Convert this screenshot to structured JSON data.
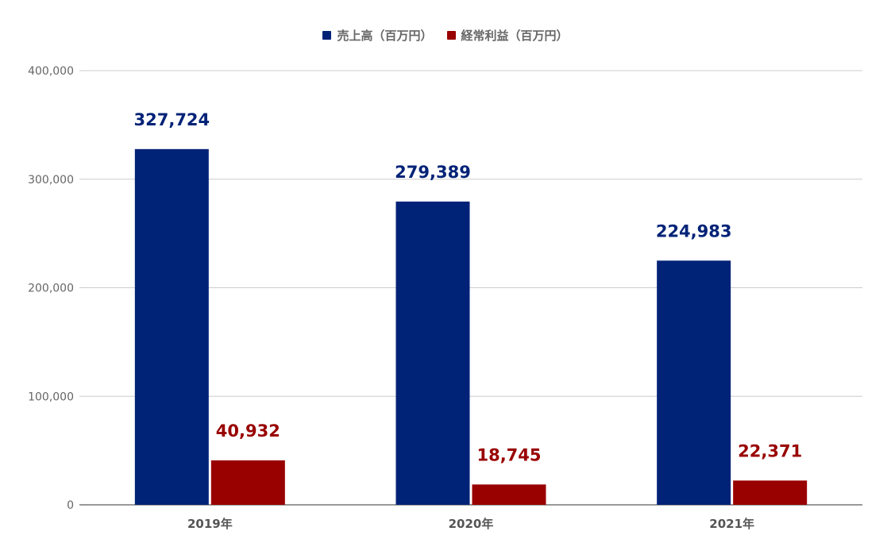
{
  "chart_data": {
    "type": "bar",
    "title": "",
    "xlabel": "",
    "ylabel": "",
    "categories": [
      "2019年",
      "2020年",
      "2021年"
    ],
    "series": [
      {
        "name": "売上高（百万円）",
        "color": "#002277",
        "values": [
          327724,
          279389,
          224983
        ],
        "data_labels": [
          "327,724",
          "279,389",
          "224,983"
        ]
      },
      {
        "name": "経常利益（百万円）",
        "color": "#990000",
        "values": [
          40932,
          18745,
          22371
        ],
        "data_labels": [
          "40,932",
          "18,745",
          "22,371"
        ]
      }
    ],
    "ylim": [
      0,
      400000
    ],
    "y_ticks": [
      0,
      100000,
      200000,
      300000,
      400000
    ],
    "y_tick_labels": [
      "0",
      "100,000",
      "200,000",
      "300,000",
      "400,000"
    ],
    "grid": true,
    "legend_position": "top-center",
    "colors": {
      "grid": "#cccccc",
      "axis": "#333333",
      "tick_text": "#666666",
      "category_text": "#555555"
    }
  }
}
